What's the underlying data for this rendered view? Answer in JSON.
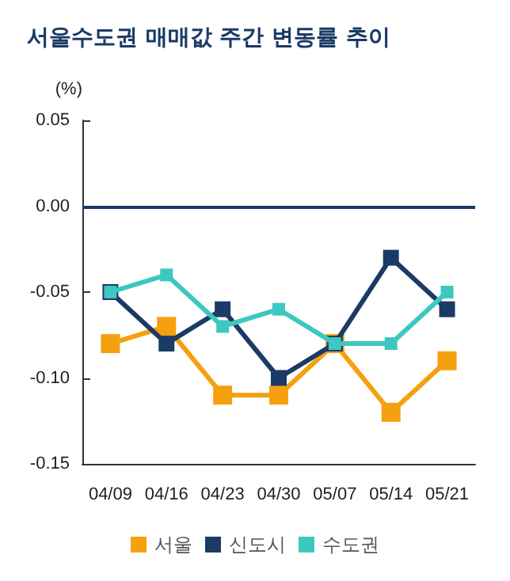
{
  "chart_data": {
    "type": "line",
    "title": "서울수도권 매매값 주간 변동률 추이",
    "ylabel": "(%)",
    "categories": [
      "04/09",
      "04/16",
      "04/23",
      "04/30",
      "05/07",
      "05/14",
      "05/21"
    ],
    "series": [
      {
        "name": "서울",
        "color": "#f5a00f",
        "values": [
          -0.08,
          -0.07,
          -0.11,
          -0.11,
          -0.08,
          -0.12,
          -0.09
        ]
      },
      {
        "name": "신도시",
        "color": "#1b3a66",
        "values": [
          -0.05,
          -0.08,
          -0.06,
          -0.1,
          -0.08,
          -0.03,
          -0.06
        ]
      },
      {
        "name": "수도권",
        "color": "#3cc8c0",
        "values": [
          -0.05,
          -0.04,
          -0.07,
          -0.06,
          -0.08,
          -0.08,
          -0.05
        ]
      }
    ],
    "ylim": [
      -0.15,
      0.05
    ],
    "yticks": [
      {
        "value": 0.05,
        "label": "0.05"
      },
      {
        "value": 0,
        "label": "0.00"
      },
      {
        "value": -0.05,
        "label": "-0.05"
      },
      {
        "value": -0.1,
        "label": "-0.10"
      },
      {
        "value": -0.15,
        "label": "-0.15"
      }
    ],
    "ref_lines": [
      {
        "axis": "y",
        "value": 0,
        "color": "#1b3a66"
      }
    ],
    "grid": false,
    "legend": "bottom",
    "marker": "square",
    "line_style": "solid"
  }
}
